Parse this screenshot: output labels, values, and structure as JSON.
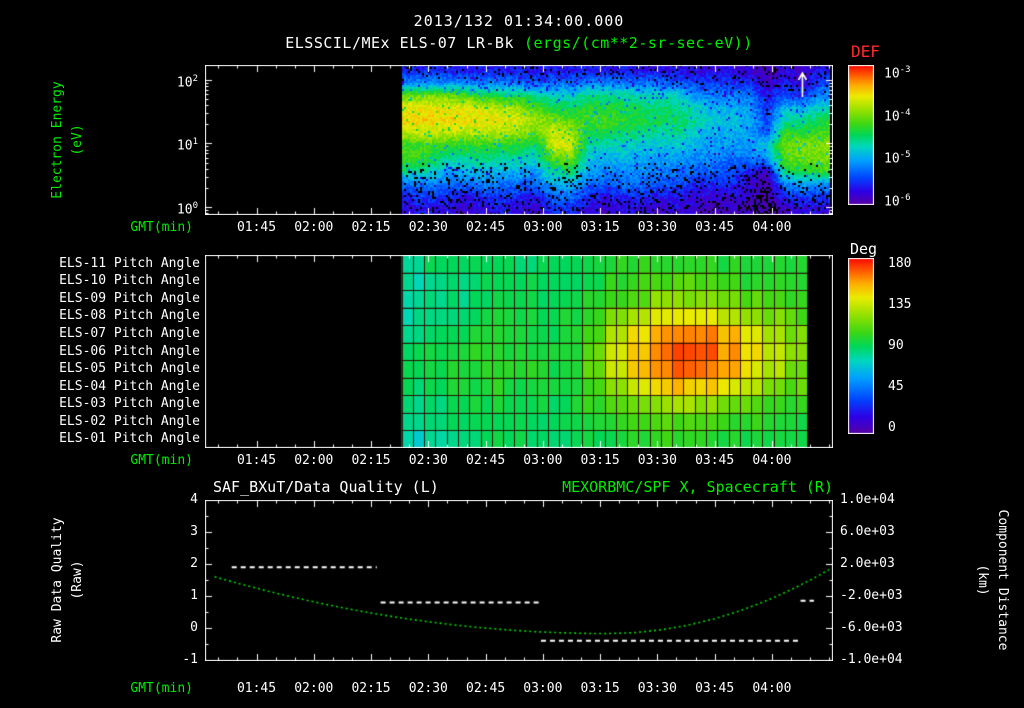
{
  "header": {
    "datetime": "2013/132 01:34:00.000",
    "instrument": "ELSSCIL/MEx ELS-07 LR-Bk",
    "units": "(ergs/(cm**2-sr-sec-eV))"
  },
  "colors": {
    "background": "#000000",
    "text": "#ffffff",
    "axis_title_green": "#00ee00",
    "def_title_red": "#ff2a2a",
    "spacecraft_series_green": "#00d800"
  },
  "time_axis": {
    "label": "GMT(min)",
    "start_min": 91.5,
    "end_min": 256,
    "minor_step_min": 5,
    "ticks": [
      {
        "min": 105,
        "label": "01:45"
      },
      {
        "min": 120,
        "label": "02:00"
      },
      {
        "min": 135,
        "label": "02:15"
      },
      {
        "min": 150,
        "label": "02:30"
      },
      {
        "min": 165,
        "label": "02:45"
      },
      {
        "min": 180,
        "label": "03:00"
      },
      {
        "min": 195,
        "label": "03:15"
      },
      {
        "min": 210,
        "label": "03:30"
      },
      {
        "min": 225,
        "label": "03:45"
      },
      {
        "min": 240,
        "label": "04:00"
      }
    ]
  },
  "spectrogram_panel": {
    "ylabel_line1": "Electron Energy",
    "ylabel_line2": "(eV)",
    "ytick_base": "10",
    "yticks": [
      {
        "exp": "2",
        "log": 2
      },
      {
        "exp": "1",
        "log": 1
      },
      {
        "exp": "0",
        "log": 0
      }
    ],
    "colorbar": {
      "title": "DEF",
      "tick_base": "10",
      "tick_exponents": [
        "-3",
        "-4",
        "-5",
        "-6"
      ]
    }
  },
  "pitch_panel": {
    "row_labels": [
      "ELS-11 Pitch Angle",
      "ELS-10 Pitch Angle",
      "ELS-09 Pitch Angle",
      "ELS-08 Pitch Angle",
      "ELS-07 Pitch Angle",
      "ELS-06 Pitch Angle",
      "ELS-05 Pitch Angle",
      "ELS-04 Pitch Angle",
      "ELS-03 Pitch Angle",
      "ELS-02 Pitch Angle",
      "ELS-01 Pitch Angle"
    ],
    "colorbar": {
      "title": "Deg",
      "ticks": [
        "180",
        "135",
        "90",
        "45",
        "0"
      ]
    }
  },
  "line_panel": {
    "title_left": "SAF_BXuT/Data Quality (L)",
    "title_right": "MEXORBMC/SPF X, Spacecraft (R)",
    "ylabel_left_line1": "Raw Data Quality",
    "ylabel_left_line2": "(Raw)",
    "ylabel_right_line1": "Component Distance",
    "ylabel_right_line2": "(km)",
    "left_ticks": [
      "4",
      "3",
      "2",
      "1",
      "0",
      "-1"
    ],
    "right_ticks": [
      "1.0e+04",
      "6.0e+03",
      "2.0e+03",
      "-2.0e+03",
      "-6.0e+03",
      "-1.0e+04"
    ]
  },
  "chart_data": [
    {
      "id": "electron_energy_spectrogram",
      "type": "heatmap",
      "title": "ELSSCIL/MEx ELS-07 LR-Bk",
      "units": "ergs/(cm**2-sr-sec-eV)",
      "t_start_min": 143,
      "t_end_min": 255,
      "time_bin_count": 24,
      "ylog": true,
      "ylim_ev": [
        0.75,
        170
      ],
      "ylim_log10": [
        -0.13,
        2.24
      ],
      "value_scale_log10": [
        -6.1,
        -3.0
      ],
      "energy_bin_centers_log10": [
        -0.02,
        0.18,
        0.37,
        0.57,
        0.77,
        0.97,
        1.16,
        1.36,
        1.56,
        1.75,
        1.95,
        2.15
      ],
      "log10_flux_rows_bottom_to_top": [
        [
          -5.8,
          -5.7,
          -5.8,
          -5.9,
          -5.8,
          -5.7,
          -5.8,
          -5.9,
          -5.6,
          -5.6,
          -5.8,
          -5.9,
          -5.8,
          -5.8,
          -5.9,
          -5.8,
          -5.9,
          -6.0,
          -5.9,
          -6.0,
          -6.1,
          -5.9,
          -5.8,
          -5.8
        ],
        [
          -5.6,
          -5.5,
          -5.6,
          -5.7,
          -5.6,
          -5.5,
          -5.6,
          -5.7,
          -5.3,
          -5.3,
          -5.6,
          -5.7,
          -5.6,
          -5.6,
          -5.7,
          -5.7,
          -5.8,
          -5.8,
          -5.8,
          -5.9,
          -6.1,
          -5.6,
          -5.5,
          -5.5
        ],
        [
          -5.3,
          -5.2,
          -5.3,
          -5.3,
          -5.2,
          -5.3,
          -5.3,
          -5.4,
          -5.0,
          -4.9,
          -5.3,
          -5.4,
          -5.3,
          -5.3,
          -5.4,
          -5.4,
          -5.6,
          -5.6,
          -5.6,
          -5.8,
          -6.1,
          -5.2,
          -5.1,
          -5.1
        ],
        [
          -4.6,
          -4.7,
          -5.0,
          -5.0,
          -4.9,
          -5.0,
          -5.0,
          -5.1,
          -4.6,
          -4.5,
          -5.1,
          -5.2,
          -5.2,
          -5.2,
          -5.3,
          -5.3,
          -5.4,
          -5.4,
          -5.5,
          -5.6,
          -5.9,
          -4.5,
          -4.4,
          -4.3
        ],
        [
          -4.3,
          -4.4,
          -4.7,
          -4.7,
          -4.6,
          -4.7,
          -4.7,
          -4.8,
          -4.2,
          -4.1,
          -4.9,
          -5.0,
          -5.0,
          -5.0,
          -5.1,
          -5.1,
          -5.2,
          -5.2,
          -5.3,
          -5.3,
          -5.1,
          -4.2,
          -4.15,
          -4.1
        ],
        [
          -4.35,
          -4.3,
          -4.35,
          -4.4,
          -4.35,
          -4.4,
          -4.45,
          -4.55,
          -3.8,
          -3.75,
          -4.7,
          -4.8,
          -4.8,
          -4.9,
          -4.9,
          -4.9,
          -5.0,
          -5.1,
          -5.1,
          -5.1,
          -4.9,
          -4.15,
          -4.1,
          -4.05
        ],
        [
          -3.85,
          -3.8,
          -3.85,
          -3.9,
          -3.85,
          -3.9,
          -3.95,
          -4.2,
          -3.75,
          -3.9,
          -4.5,
          -4.5,
          -4.55,
          -4.65,
          -4.7,
          -4.7,
          -4.9,
          -5.0,
          -5.0,
          -5.1,
          -5.4,
          -4.35,
          -4.4,
          -4.25
        ],
        [
          -3.6,
          -3.58,
          -3.6,
          -3.65,
          -3.62,
          -3.68,
          -3.75,
          -4.0,
          -4.05,
          -4.25,
          -4.3,
          -4.3,
          -4.35,
          -4.5,
          -4.5,
          -4.55,
          -4.7,
          -4.9,
          -4.9,
          -5.0,
          -5.5,
          -4.7,
          -4.7,
          -4.5
        ],
        [
          -3.7,
          -3.68,
          -3.7,
          -3.72,
          -3.78,
          -3.9,
          -3.95,
          -4.25,
          -4.5,
          -4.55,
          -4.4,
          -4.45,
          -4.45,
          -4.55,
          -4.6,
          -4.65,
          -4.8,
          -5.0,
          -5.0,
          -5.1,
          -5.6,
          -5.0,
          -5.05,
          -4.8
        ],
        [
          -4.15,
          -4.1,
          -4.15,
          -4.2,
          -4.4,
          -4.45,
          -4.5,
          -4.7,
          -4.8,
          -4.85,
          -4.65,
          -4.65,
          -4.7,
          -4.8,
          -4.8,
          -4.85,
          -5.2,
          -5.25,
          -5.25,
          -5.3,
          -5.7,
          -5.5,
          -5.55,
          -5.2
        ],
        [
          -5.2,
          -5.15,
          -5.2,
          -5.2,
          -5.25,
          -5.25,
          -5.3,
          -5.4,
          -5.3,
          -5.35,
          -5.2,
          -5.25,
          -5.25,
          -5.3,
          -5.3,
          -5.4,
          -5.5,
          -5.5,
          -5.55,
          -5.6,
          -5.9,
          -5.7,
          -5.85,
          -5.5
        ],
        [
          -5.65,
          -5.6,
          -5.65,
          -5.7,
          -5.65,
          -5.7,
          -5.7,
          -5.75,
          -5.7,
          -5.7,
          -5.65,
          -5.7,
          -5.7,
          -5.7,
          -5.75,
          -5.75,
          -5.8,
          -5.8,
          -5.8,
          -5.85,
          -6.0,
          -5.8,
          -5.9,
          -5.7
        ]
      ],
      "marker": {
        "symbol": "up-arrow",
        "t_min": 248,
        "color": "#ffffff"
      }
    },
    {
      "id": "pitch_angle_grid",
      "type": "heatmap",
      "t_start_min": 143,
      "t_end_min": 249.3,
      "time_bin_count": 18,
      "deg_range": [
        0,
        180
      ],
      "rows_top_to_bottom": [
        "ELS-11",
        "ELS-10",
        "ELS-09",
        "ELS-08",
        "ELS-07",
        "ELS-06",
        "ELS-05",
        "ELS-04",
        "ELS-03",
        "ELS-02",
        "ELS-01"
      ],
      "deg_rows_top_to_bottom": [
        [
          85,
          88,
          90,
          92,
          90,
          88,
          90,
          92,
          95,
          98,
          100,
          102,
          102,
          100,
          98,
          96,
          95,
          95
        ],
        [
          80,
          85,
          88,
          90,
          92,
          90,
          88,
          90,
          95,
          100,
          105,
          108,
          108,
          105,
          102,
          100,
          98,
          96
        ],
        [
          78,
          82,
          86,
          90,
          92,
          90,
          88,
          92,
          98,
          105,
          112,
          118,
          120,
          118,
          112,
          108,
          104,
          100
        ],
        [
          80,
          84,
          88,
          92,
          94,
          92,
          90,
          94,
          102,
          115,
          128,
          138,
          142,
          140,
          132,
          124,
          116,
          108
        ],
        [
          85,
          88,
          92,
          95,
          96,
          94,
          92,
          96,
          108,
          125,
          142,
          155,
          162,
          160,
          150,
          138,
          126,
          115
        ],
        [
          88,
          92,
          95,
          98,
          98,
          96,
          94,
          98,
          112,
          132,
          150,
          163,
          168,
          166,
          156,
          144,
          130,
          118
        ],
        [
          90,
          94,
          96,
          99,
          100,
          98,
          95,
          99,
          112,
          130,
          148,
          160,
          165,
          162,
          152,
          140,
          128,
          116
        ],
        [
          88,
          92,
          95,
          97,
          98,
          96,
          94,
          96,
          106,
          120,
          135,
          146,
          150,
          147,
          138,
          128,
          118,
          110
        ],
        [
          85,
          88,
          92,
          94,
          95,
          94,
          92,
          94,
          100,
          108,
          116,
          122,
          124,
          122,
          116,
          110,
          105,
          100
        ],
        [
          80,
          84,
          88,
          90,
          92,
          91,
          90,
          92,
          96,
          100,
          105,
          108,
          108,
          106,
          103,
          100,
          97,
          95
        ],
        [
          75,
          80,
          85,
          88,
          90,
          90,
          89,
          90,
          93,
          96,
          99,
          101,
          101,
          100,
          98,
          96,
          94,
          92
        ]
      ]
    },
    {
      "id": "data_quality_and_spacecraft_x",
      "type": "line",
      "left_axis_range": [
        -1,
        4
      ],
      "right_axis_range_km": [
        -10000,
        10000
      ],
      "series": [
        {
          "name": "SAF_BXuT/Data Quality",
          "axis": "left",
          "style": "dashed",
          "color": "#ffffff",
          "segments": [
            {
              "t0": 98.5,
              "t1": 136.5,
              "value": 1.9
            },
            {
              "t0": 137.5,
              "t1": 179,
              "value": 0.8
            },
            {
              "t0": 179.5,
              "t1": 247,
              "value": -0.4
            },
            {
              "t0": 247.5,
              "t1": 251,
              "value": 0.85
            }
          ]
        },
        {
          "name": "MEXORBMC/SPF X, Spacecraft",
          "axis": "right",
          "style": "dotted",
          "color": "#00d800",
          "t_min": [
            94,
            101,
            108,
            115,
            122,
            129,
            136,
            143,
            150,
            157,
            164,
            171,
            178,
            185,
            192,
            197,
            204,
            211,
            218,
            225,
            232,
            239,
            246,
            251,
            255
          ],
          "km": [
            400,
            -530,
            -1400,
            -2200,
            -2940,
            -3610,
            -4210,
            -4750,
            -5220,
            -5630,
            -5970,
            -6250,
            -6460,
            -6600,
            -6680,
            -6700,
            -6580,
            -6230,
            -5650,
            -4840,
            -3790,
            -2510,
            -990,
            230,
            1300
          ]
        }
      ]
    }
  ]
}
